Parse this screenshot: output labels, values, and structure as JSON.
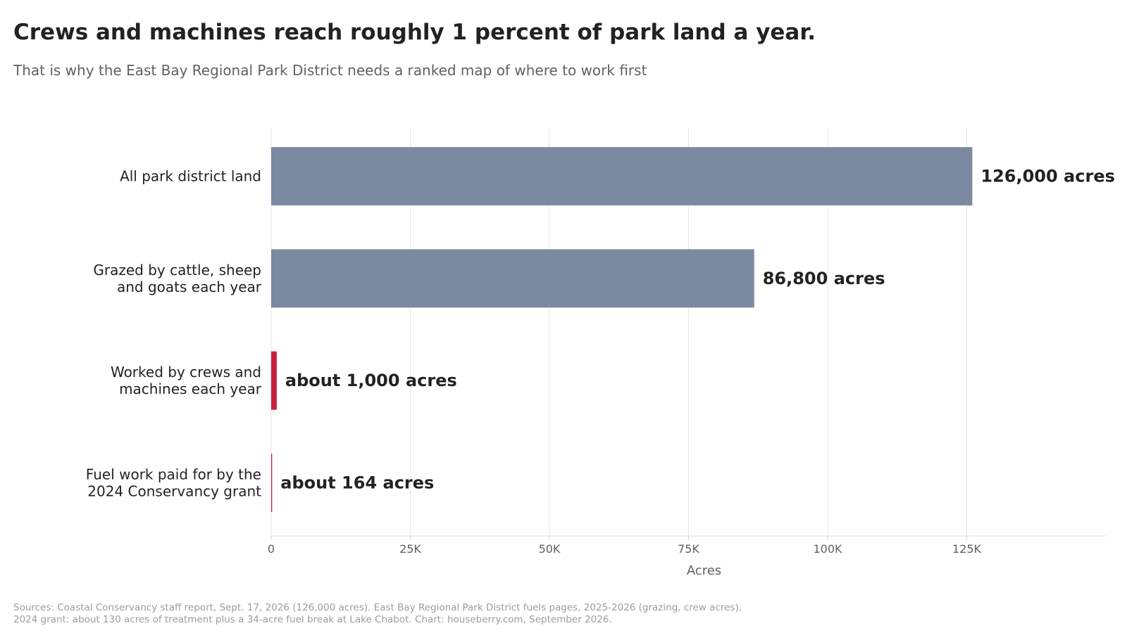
{
  "title": "Crews and machines reach roughly 1 percent of park land a year.",
  "subtitle": "That is why the East Bay Regional Park District needs a ranked map of where to work first",
  "source_lines": [
    "Sources: Coastal Conservancy staff report, Sept. 17, 2026 (126,000 acres). East Bay Regional Park District fuels pages, 2025-2026 (grazing, crew acres).",
    "2024 grant: about 130 acres of treatment plus a 34-acre fuel break at Lake Chabot. Chart: houseberry.com, September 2026."
  ],
  "chart_data": {
    "type": "bar",
    "orientation": "horizontal",
    "categories": [
      [
        "All park district land"
      ],
      [
        "Grazed by cattle, sheep",
        "and goats each year"
      ],
      [
        "Worked by crews and",
        "machines each year"
      ],
      [
        "Fuel work paid for by the",
        "2024 Conservancy grant"
      ]
    ],
    "values": [
      126000,
      86800,
      1000,
      164
    ],
    "data_labels": [
      "126,000 acres",
      "86,800 acres",
      "about 1,000 acres",
      "about 164 acres"
    ],
    "bar_colors": [
      "#7b8aa0",
      "#7b8aa0",
      "#c8203f",
      "#c8203f"
    ],
    "xlabel": "Acres",
    "xlim": [
      0,
      150000
    ],
    "xticks": [
      0,
      25000,
      50000,
      75000,
      100000,
      125000
    ],
    "xtick_labels": [
      "0",
      "25K",
      "50K",
      "75K",
      "100K",
      "125K"
    ],
    "grid": true
  }
}
